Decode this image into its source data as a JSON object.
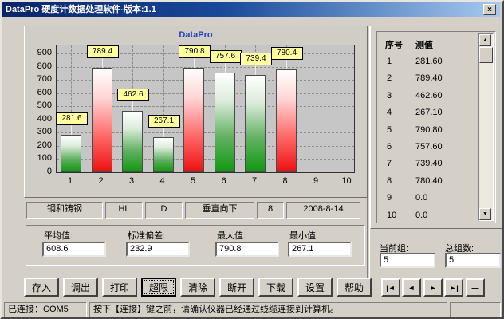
{
  "window": {
    "title": "DataPro 硬度计数据处理软件-版本:1.1",
    "close_glyph": "×"
  },
  "chart_data": {
    "type": "bar",
    "title": "DataPro",
    "categories": [
      "1",
      "2",
      "3",
      "4",
      "5",
      "6",
      "7",
      "8",
      "9",
      "10"
    ],
    "values": [
      281.6,
      789.4,
      462.6,
      267.1,
      790.8,
      757.6,
      739.4,
      780.4
    ],
    "value_labels": [
      "281.6",
      "789.4",
      "462.6",
      "267.1",
      "790.8",
      "757.6",
      "739.4",
      "780.4"
    ],
    "bar_colors": [
      "green",
      "red",
      "green",
      "green",
      "red",
      "green",
      "green",
      "red"
    ],
    "y_ticks": [
      0,
      100,
      200,
      300,
      400,
      500,
      600,
      700,
      800,
      900
    ],
    "ylim": [
      0,
      950
    ],
    "xlabel": "",
    "ylabel": "",
    "grid": "dashed",
    "legend": "none",
    "colors": {
      "red_bar": "#ee1111",
      "green_bar": "#119911",
      "label_bg": "#ffff9e",
      "title": "#2244bb",
      "plot_bg": "#c6c6c6"
    }
  },
  "table": {
    "headers": [
      "序号",
      "测值"
    ],
    "rows": [
      [
        "1",
        "281.60"
      ],
      [
        "2",
        "789.40"
      ],
      [
        "3",
        "462.60"
      ],
      [
        "4",
        "267.10"
      ],
      [
        "5",
        "790.80"
      ],
      [
        "6",
        "757.60"
      ],
      [
        "7",
        "739.40"
      ],
      [
        "8",
        "780.40"
      ],
      [
        "9",
        "0.0"
      ],
      [
        "10",
        "0.0"
      ]
    ]
  },
  "info_fields": [
    "钢和铸钢",
    "HL",
    "D",
    "垂直向下",
    "8",
    "2008-8-14"
  ],
  "stats": [
    {
      "label": "平均值:",
      "value": "608.6"
    },
    {
      "label": "标准偏差:",
      "value": "232.9"
    },
    {
      "label": "最大值:",
      "value": "790.8"
    },
    {
      "label": "最小值",
      "value": "267.1"
    }
  ],
  "groups": {
    "current_label": "当前组:",
    "current_value": "5",
    "total_label": "总组数:",
    "total_value": "5"
  },
  "buttons": [
    "存入",
    "调出",
    "打印",
    "超限",
    "清除",
    "断开",
    "下载",
    "设置",
    "帮助"
  ],
  "nav_buttons": [
    "|◄",
    "◄",
    "►",
    "►|",
    "—"
  ],
  "scrollbar": {
    "up": "▲",
    "down": "▼"
  },
  "status_bar": {
    "connection": "已连接：COM5",
    "message": "按下【连接】键之前，请确认仪器已经通过线缆连接到计算机。"
  }
}
